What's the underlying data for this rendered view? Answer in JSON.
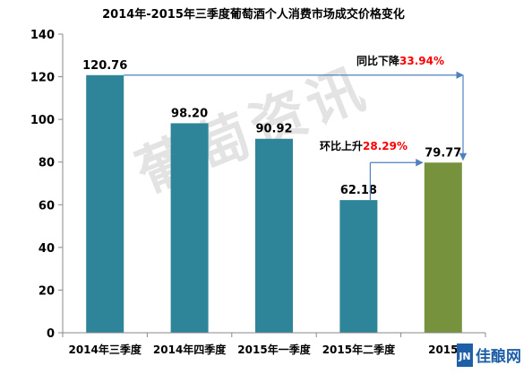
{
  "chart_data": {
    "type": "bar",
    "title": "2014年-2015年三季度葡萄酒个人消费市场成交价格变化",
    "categories": [
      "2014年三季度",
      "2014年四季度",
      "2015年一季度",
      "2015年二季度",
      "2015"
    ],
    "values": [
      120.76,
      98.2,
      90.92,
      62.18,
      79.77
    ],
    "value_labels": [
      "120.76",
      "98.20",
      "90.92",
      "62.18",
      "79.77"
    ],
    "bar_colors": [
      "#2E8599",
      "#2E8599",
      "#2E8599",
      "#2E8599",
      "#76923C"
    ],
    "ylim": [
      0,
      140
    ],
    "yticks": [
      0,
      20,
      40,
      60,
      80,
      100,
      120,
      140
    ],
    "xlabel": "",
    "ylabel": "",
    "grid": false,
    "annotations": {
      "yoy": {
        "prefix": "同比下降",
        "value": "33.94%"
      },
      "qoq": {
        "prefix": "环比上升",
        "value": "28.29%"
      }
    },
    "arrow_color": "#4F81BD",
    "annotation_color": "#FF0000"
  },
  "watermark": {
    "text": "葡萄资讯"
  },
  "logo": {
    "mark": "JN",
    "text": "佳酿网"
  }
}
